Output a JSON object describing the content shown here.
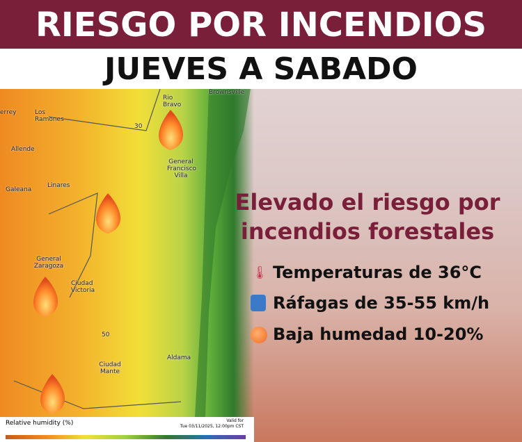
{
  "header": {
    "title": "RIESGO POR INCENDIOS",
    "subtitle": "JUEVES A SABADO"
  },
  "map": {
    "labels": [
      "errey",
      "Los Ramones",
      "Rio Bravo",
      "Brownsville",
      "30",
      "Allende",
      "General Francisco Villa",
      "Galeana",
      "Linares",
      "General Zaragoza",
      "Ciudad Victoria",
      "50",
      "Aldama",
      "Ciudad Mante"
    ],
    "legend_title": "Relative humidity (%)",
    "valid_label": "Valid for",
    "valid_time": "Tue 03/11/2025, 12:00pm CST"
  },
  "panel": {
    "headline": "Elevado el riesgo por incendios forestales",
    "items": [
      "Temperaturas de 36°C",
      "Ráfagas de 35-55 km/h",
      "Baja humedad 10-20%"
    ]
  }
}
